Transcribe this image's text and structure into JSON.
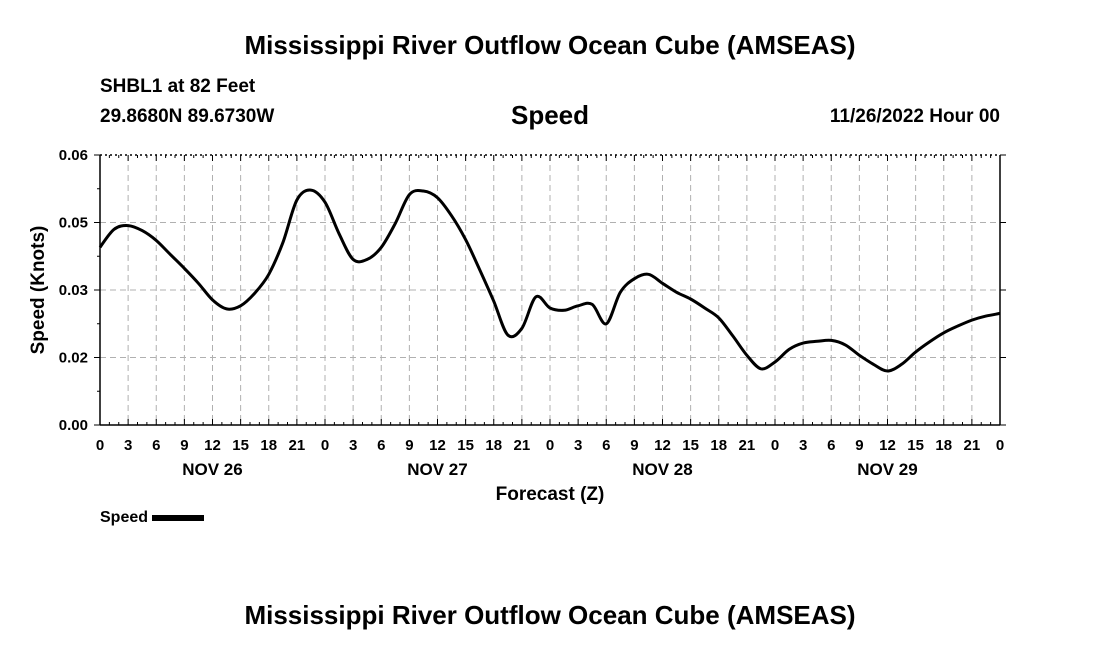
{
  "chart_data": {
    "type": "line",
    "title": "Mississippi River Outflow Ocean Cube (AMSEAS)",
    "subtitle": "Speed",
    "station": "SHBL1 at 82 Feet",
    "location": "29.8680N  89.6730W",
    "datetime": "11/26/2022 Hour 00",
    "xlabel": "Forecast (Z)",
    "ylabel": "Speed (Knots)",
    "ylim": [
      0,
      0.06
    ],
    "y_ticks": [
      "0.00",
      "0.02",
      "0.03",
      "0.05",
      "0.06"
    ],
    "x_tick_labels": [
      "0",
      "3",
      "6",
      "9",
      "12",
      "15",
      "18",
      "21",
      "0",
      "3",
      "6",
      "9",
      "12",
      "15",
      "18",
      "21",
      "0",
      "3",
      "6",
      "9",
      "12",
      "15",
      "18",
      "21",
      "0",
      "3",
      "6",
      "9",
      "12",
      "15",
      "18",
      "21",
      "0"
    ],
    "day_labels": [
      "NOV 26",
      "NOV 27",
      "NOV 28",
      "NOV 29"
    ],
    "xlim_hours": [
      0,
      96
    ],
    "series": [
      {
        "name": "Speed",
        "x_hours": [
          0,
          1.5,
          3,
          4.5,
          6,
          7.5,
          9,
          10.5,
          12,
          13.5,
          15,
          16.5,
          18,
          19.5,
          21,
          22.5,
          24,
          25.5,
          27,
          28.5,
          30,
          31.5,
          33,
          34.5,
          36,
          37.5,
          39,
          40.5,
          42,
          43.5,
          45,
          46.5,
          48,
          49.5,
          51,
          52.5,
          54,
          55.5,
          57,
          58.5,
          60,
          61.5,
          63,
          64.5,
          66,
          67.5,
          69,
          70.5,
          72,
          73.5,
          75,
          76.5,
          78,
          79.5,
          81,
          82.5,
          84,
          85.5,
          87,
          88.5,
          90,
          91.5,
          93,
          94.5,
          96
        ],
        "values": [
          0.0395,
          0.0435,
          0.0443,
          0.0432,
          0.041,
          0.0379,
          0.0348,
          0.0315,
          0.0278,
          0.0258,
          0.0265,
          0.0293,
          0.0335,
          0.0405,
          0.05,
          0.0522,
          0.0495,
          0.0425,
          0.0368,
          0.0368,
          0.0395,
          0.0448,
          0.0512,
          0.052,
          0.0505,
          0.0465,
          0.0412,
          0.0345,
          0.0275,
          0.02,
          0.0215,
          0.0285,
          0.026,
          0.0255,
          0.0265,
          0.0268,
          0.0225,
          0.0295,
          0.0325,
          0.0335,
          0.0315,
          0.0295,
          0.028,
          0.026,
          0.0238,
          0.0198,
          0.0155,
          0.0125,
          0.014,
          0.0168,
          0.0182,
          0.0186,
          0.0188,
          0.0178,
          0.0155,
          0.0135,
          0.012,
          0.0135,
          0.0162,
          0.0185,
          0.0205,
          0.022,
          0.0233,
          0.0242,
          0.0248
        ]
      }
    ],
    "legend": "Speed",
    "grid": true
  },
  "footer": {
    "title": "Mississippi River Outflow Ocean Cube (AMSEAS)"
  }
}
